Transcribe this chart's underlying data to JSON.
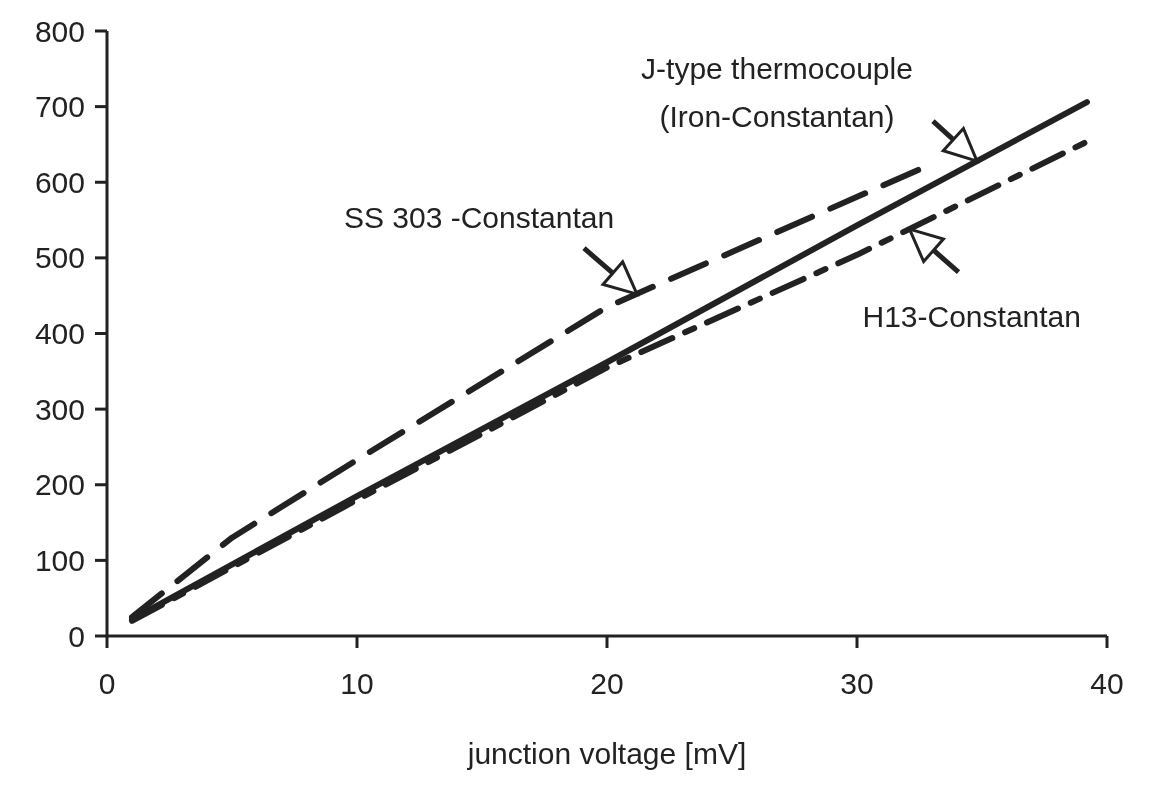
{
  "chart_data": {
    "type": "line",
    "xlabel": "junction voltage [mV]",
    "xlim": [
      0,
      40
    ],
    "xticks": [
      0,
      10,
      20,
      30,
      40
    ],
    "ylim": [
      0,
      800
    ],
    "yticks": [
      0,
      100,
      200,
      300,
      400,
      500,
      600,
      700,
      800
    ],
    "grid": false,
    "marker": "none",
    "series": [
      {
        "color": "#222222",
        "line_style": "solid",
        "x": [
          1,
          10,
          20,
          30,
          39.2
        ],
        "values": [
          22,
          185,
          362,
          543,
          706
        ]
      },
      {
        "color": "#222222",
        "line_style": "dashed",
        "x": [
          1,
          5,
          10,
          20,
          32.7
        ],
        "values": [
          25,
          130,
          233,
          435,
          620
        ]
      },
      {
        "color": "#222222",
        "line_style": "dashdot",
        "x": [
          1,
          10,
          20,
          30,
          39.1
        ],
        "values": [
          20,
          180,
          355,
          504,
          652
        ]
      }
    ],
    "annotations": [
      {
        "text": "J-type thermocouple\n(Iron-Constantan)",
        "x": 34.8,
        "y": 628
      },
      {
        "text": "SS 303 -Constantan",
        "x": 21.2,
        "y": 452
      },
      {
        "text": "H13-Constantan",
        "x": 32.1,
        "y": 538
      }
    ]
  }
}
